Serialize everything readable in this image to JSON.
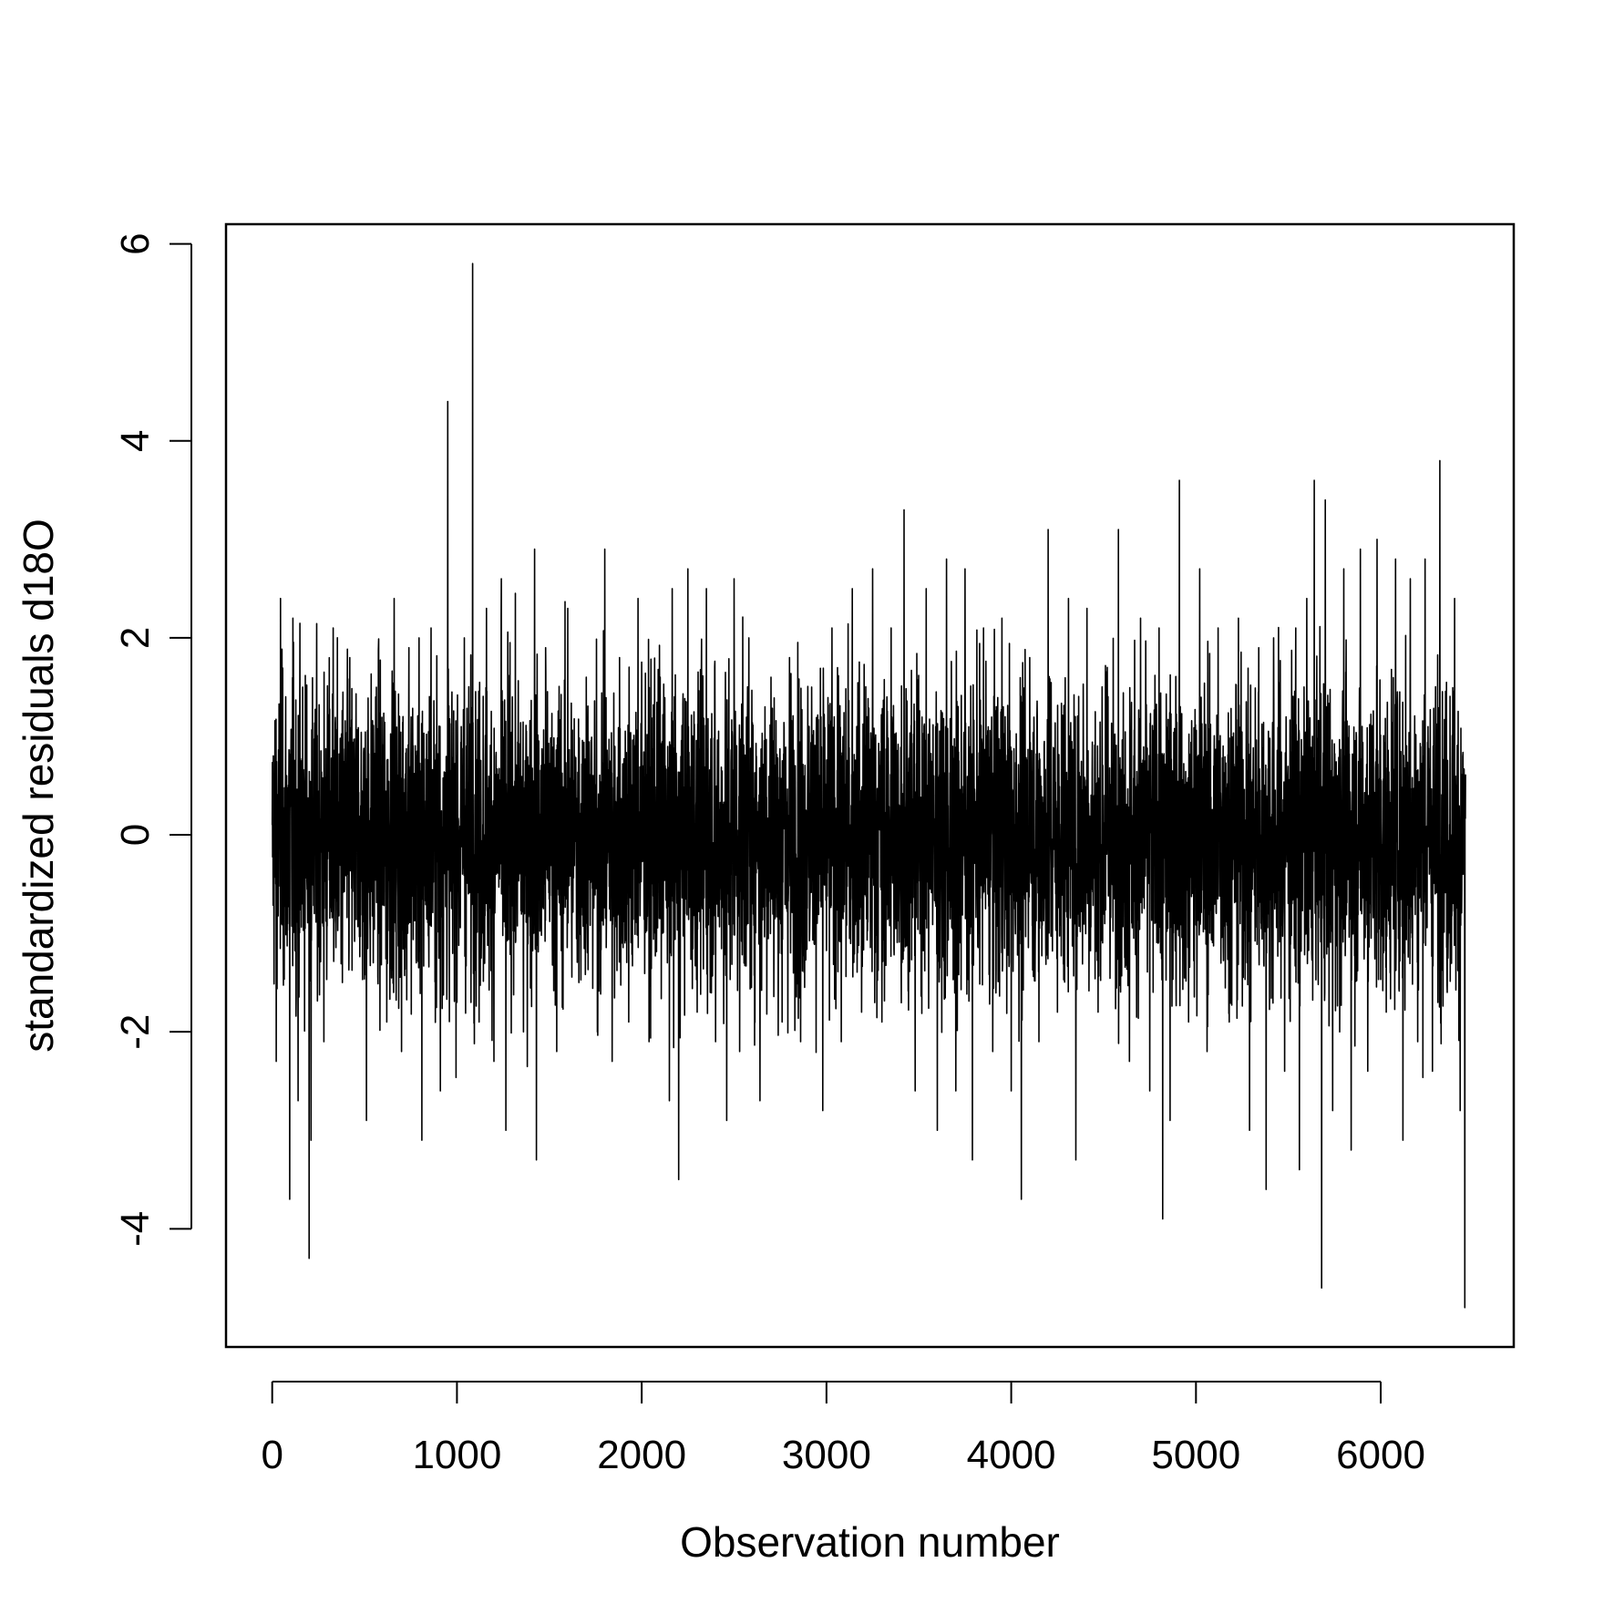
{
  "chart_data": {
    "type": "line",
    "title": "",
    "xlabel": "Observation number",
    "ylabel": "standardized residuals d18O",
    "xlim": [
      -250,
      6720
    ],
    "ylim": [
      -5.2,
      6.2
    ],
    "xticks": [
      0,
      1000,
      2000,
      3000,
      4000,
      5000,
      6000
    ],
    "xtick_labels": [
      "0",
      "1000",
      "2000",
      "3000",
      "4000",
      "5000",
      "6000"
    ],
    "yticks": [
      -4,
      -2,
      0,
      2,
      4,
      6
    ],
    "ytick_labels": [
      "-4",
      "-2",
      "0",
      "2",
      "4",
      "6"
    ],
    "grid": false,
    "legend": "none",
    "line_color": "#000000",
    "n_observations": 6460,
    "series": [
      {
        "x": [
          0,
          22,
          45,
          60,
          95,
          112,
          140,
          165,
          200,
          210,
          240,
          280,
          330,
          380,
          420,
          510,
          560,
          620,
          660,
          700,
          740,
          780,
          810,
          860,
          910,
          950,
          1000,
          1040,
          1085,
          1120,
          1160,
          1200,
          1240,
          1265,
          1300,
          1360,
          1420,
          1430,
          1480,
          1540,
          1600,
          1660,
          1700,
          1760,
          1800,
          1840,
          1880,
          1930,
          1980,
          2040,
          2100,
          2150,
          2200,
          2250,
          2300,
          2350,
          2400,
          2460,
          2500,
          2530,
          2580,
          2640,
          2700,
          2760,
          2800,
          2860,
          2920,
          2980,
          3030,
          3080,
          3140,
          3190,
          3250,
          3300,
          3350,
          3420,
          3480,
          3540,
          3600,
          3650,
          3700,
          3750,
          3790,
          3850,
          3900,
          3950,
          4000,
          4055,
          4100,
          4150,
          4200,
          4250,
          4310,
          4350,
          4410,
          4470,
          4520,
          4580,
          4640,
          4700,
          4750,
          4800,
          4820,
          4860,
          4910,
          4960,
          5020,
          5060,
          5120,
          5180,
          5230,
          5290,
          5340,
          5380,
          5420,
          5480,
          5540,
          5560,
          5600,
          5640,
          5680,
          5700,
          5740,
          5800,
          5840,
          5890,
          5930,
          5980,
          6030,
          6080,
          6120,
          6160,
          6200,
          6240,
          6280,
          6320,
          6360,
          6400,
          6430,
          6455
        ],
        "y": [
          0.1,
          -2.3,
          2.4,
          -1.2,
          -3.7,
          2.2,
          -2.7,
          1.5,
          -4.3,
          -3.1,
          1.1,
          -2.1,
          2.1,
          -1.5,
          1.8,
          -2.9,
          1.4,
          -1.9,
          2.4,
          -2.2,
          1.9,
          -1.3,
          -3.1,
          2.1,
          -2.6,
          4.4,
          -1.7,
          2.0,
          5.8,
          -1.9,
          2.3,
          -2.3,
          2.6,
          -3.0,
          1.4,
          -2.0,
          2.9,
          -3.3,
          1.9,
          -2.2,
          2.3,
          -1.5,
          1.6,
          -2.0,
          2.9,
          -2.3,
          1.8,
          -1.9,
          2.4,
          -2.1,
          1.6,
          -2.7,
          -3.5,
          2.7,
          -1.8,
          2.5,
          -2.1,
          -2.9,
          2.6,
          -2.2,
          2.0,
          -2.7,
          1.6,
          -1.9,
          1.8,
          -2.1,
          1.5,
          -2.8,
          2.1,
          -2.1,
          2.5,
          -1.8,
          2.7,
          -1.9,
          2.1,
          3.3,
          -2.6,
          2.5,
          -3.0,
          2.8,
          -2.6,
          2.7,
          -3.3,
          2.1,
          -2.2,
          2.2,
          -2.6,
          -3.7,
          1.8,
          -2.1,
          3.1,
          -1.8,
          2.4,
          -3.3,
          2.3,
          -1.8,
          1.7,
          3.1,
          -2.3,
          2.2,
          -2.6,
          2.1,
          -3.9,
          -2.9,
          3.6,
          -1.9,
          2.7,
          -2.2,
          2.1,
          -1.9,
          2.2,
          -3.0,
          1.9,
          -3.6,
          2.0,
          -2.4,
          2.1,
          -3.4,
          2.4,
          3.6,
          -4.6,
          3.4,
          -2.8,
          2.7,
          -3.2,
          2.9,
          -2.4,
          3.0,
          -1.8,
          2.8,
          -3.1,
          2.6,
          -2.1,
          2.8,
          -2.4,
          3.8,
          -1.6,
          2.4,
          -2.8,
          -4.8
        ]
      }
    ]
  }
}
